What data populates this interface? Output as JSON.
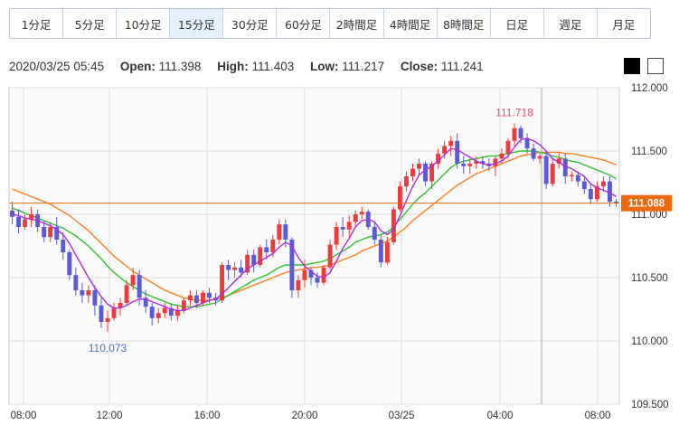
{
  "timeframes": [
    {
      "label": "1分足",
      "active": false
    },
    {
      "label": "5分足",
      "active": false
    },
    {
      "label": "10分足",
      "active": false
    },
    {
      "label": "15分足",
      "active": true
    },
    {
      "label": "30分足",
      "active": false
    },
    {
      "label": "60分足",
      "active": false
    },
    {
      "label": "2時間足",
      "active": false
    },
    {
      "label": "4時間足",
      "active": false
    },
    {
      "label": "8時間足",
      "active": false
    },
    {
      "label": "日足",
      "active": false
    },
    {
      "label": "週足",
      "active": false
    },
    {
      "label": "月足",
      "active": false
    }
  ],
  "ohlc": {
    "datetime": "2020/03/25 05:45",
    "open_label": "Open:",
    "open": "111.398",
    "high_label": "High:",
    "high": "111.403",
    "low_label": "Low:",
    "low": "111.217",
    "close_label": "Close:",
    "close": "111.241"
  },
  "theme_buttons": [
    "dark-theme",
    "light-theme"
  ],
  "colors": {
    "up": "#ee3a3a",
    "down": "#5a5ad6",
    "ma_short": "#b02be0",
    "ma_mid": "#2ec22e",
    "ma_long": "#ff7f1e",
    "current_price": "#ee6a10",
    "high_label": "#e0506a",
    "low_label": "#4a70c8",
    "grid": "#dcdcdc",
    "plot_bg": "#fafafa"
  },
  "chart_data": {
    "type": "candlestick",
    "interval": "15分足",
    "ylim": [
      109.5,
      112.0
    ],
    "y_ticks": [
      "112.000",
      "111.500",
      "111.000",
      "110.500",
      "110.000",
      "109.500"
    ],
    "x_ticks": [
      "08:00",
      "12:00",
      "16:00",
      "20:00",
      "03/25",
      "04:00",
      "08:00"
    ],
    "current_price": "111.088",
    "high_marker": {
      "label": "111.718",
      "value": 111.718
    },
    "low_marker": {
      "label": "110.073",
      "value": 110.073
    },
    "candles": [
      [
        111.03,
        111.1,
        110.92,
        110.98
      ],
      [
        110.98,
        111.04,
        110.85,
        110.9
      ],
      [
        110.9,
        111.0,
        110.88,
        110.96
      ],
      [
        110.96,
        111.06,
        110.9,
        111.0
      ],
      [
        111.0,
        111.04,
        110.86,
        110.9
      ],
      [
        110.9,
        110.95,
        110.78,
        110.82
      ],
      [
        110.82,
        110.94,
        110.78,
        110.9
      ],
      [
        110.9,
        110.98,
        110.76,
        110.8
      ],
      [
        110.8,
        110.86,
        110.64,
        110.7
      ],
      [
        110.7,
        110.72,
        110.48,
        110.52
      ],
      [
        110.52,
        110.58,
        110.36,
        110.4
      ],
      [
        110.4,
        110.46,
        110.3,
        110.36
      ],
      [
        110.36,
        110.44,
        110.3,
        110.4
      ],
      [
        110.4,
        110.44,
        110.2,
        110.28
      ],
      [
        110.28,
        110.34,
        110.1,
        110.15
      ],
      [
        110.15,
        110.24,
        110.073,
        110.18
      ],
      [
        110.18,
        110.3,
        110.16,
        110.26
      ],
      [
        110.26,
        110.34,
        110.2,
        110.3
      ],
      [
        110.3,
        110.48,
        110.28,
        110.44
      ],
      [
        110.44,
        110.58,
        110.4,
        110.52
      ],
      [
        110.52,
        110.56,
        110.28,
        110.34
      ],
      [
        110.34,
        110.4,
        110.22,
        110.27
      ],
      [
        110.27,
        110.3,
        110.12,
        110.18
      ],
      [
        110.18,
        110.26,
        110.14,
        110.22
      ],
      [
        110.22,
        110.3,
        110.18,
        110.26
      ],
      [
        110.26,
        110.3,
        110.16,
        110.2
      ],
      [
        110.2,
        110.28,
        110.16,
        110.24
      ],
      [
        110.24,
        110.34,
        110.22,
        110.32
      ],
      [
        110.32,
        110.4,
        110.28,
        110.36
      ],
      [
        110.36,
        110.4,
        110.26,
        110.3
      ],
      [
        110.3,
        110.4,
        110.28,
        110.38
      ],
      [
        110.38,
        110.42,
        110.3,
        110.34
      ],
      [
        110.34,
        110.38,
        110.28,
        110.32
      ],
      [
        110.32,
        110.62,
        110.3,
        110.6
      ],
      [
        110.6,
        110.64,
        110.48,
        110.56
      ],
      [
        110.56,
        110.62,
        110.5,
        110.58
      ],
      [
        110.58,
        110.64,
        110.5,
        110.54
      ],
      [
        110.54,
        110.72,
        110.52,
        110.68
      ],
      [
        110.68,
        110.72,
        110.54,
        110.6
      ],
      [
        110.6,
        110.76,
        110.58,
        110.74
      ],
      [
        110.74,
        110.8,
        110.64,
        110.7
      ],
      [
        110.7,
        110.84,
        110.66,
        110.8
      ],
      [
        110.8,
        110.96,
        110.76,
        110.92
      ],
      [
        110.92,
        110.96,
        110.74,
        110.8
      ],
      [
        110.8,
        110.82,
        110.34,
        110.4
      ],
      [
        110.4,
        110.52,
        110.34,
        110.48
      ],
      [
        110.48,
        110.64,
        110.42,
        110.56
      ],
      [
        110.56,
        110.58,
        110.44,
        110.5
      ],
      [
        110.5,
        110.54,
        110.42,
        110.46
      ],
      [
        110.46,
        110.6,
        110.44,
        110.58
      ],
      [
        110.58,
        110.8,
        110.56,
        110.76
      ],
      [
        110.76,
        110.94,
        110.72,
        110.9
      ],
      [
        110.9,
        110.98,
        110.82,
        110.88
      ],
      [
        110.88,
        110.99,
        110.82,
        110.94
      ],
      [
        110.94,
        111.03,
        110.9,
        111.0
      ],
      [
        111.0,
        111.06,
        110.96,
        111.02
      ],
      [
        111.02,
        111.04,
        110.88,
        110.9
      ],
      [
        110.9,
        110.94,
        110.76,
        110.8
      ],
      [
        110.8,
        110.84,
        110.58,
        110.62
      ],
      [
        110.62,
        110.82,
        110.6,
        110.78
      ],
      [
        110.78,
        111.06,
        110.76,
        111.04
      ],
      [
        111.04,
        111.26,
        111.02,
        111.22
      ],
      [
        111.22,
        111.34,
        111.18,
        111.3
      ],
      [
        111.3,
        111.4,
        111.26,
        111.36
      ],
      [
        111.36,
        111.44,
        111.3,
        111.4
      ],
      [
        111.4,
        111.42,
        111.22,
        111.26
      ],
      [
        111.26,
        111.42,
        111.2,
        111.4
      ],
      [
        111.4,
        111.52,
        111.36,
        111.48
      ],
      [
        111.48,
        111.58,
        111.44,
        111.54
      ],
      [
        111.54,
        111.62,
        111.46,
        111.58
      ],
      [
        111.58,
        111.64,
        111.36,
        111.4
      ],
      [
        111.4,
        111.46,
        111.32,
        111.38
      ],
      [
        111.38,
        111.44,
        111.32,
        111.4
      ],
      [
        111.4,
        111.46,
        111.36,
        111.42
      ],
      [
        111.42,
        111.46,
        111.36,
        111.4
      ],
      [
        111.4,
        111.44,
        111.34,
        111.38
      ],
      [
        111.38,
        111.46,
        111.3,
        111.44
      ],
      [
        111.44,
        111.52,
        111.4,
        111.48
      ],
      [
        111.48,
        111.6,
        111.44,
        111.58
      ],
      [
        111.58,
        111.718,
        111.54,
        111.68
      ],
      [
        111.68,
        111.7,
        111.56,
        111.6
      ],
      [
        111.6,
        111.64,
        111.48,
        111.52
      ],
      [
        111.52,
        111.56,
        111.42,
        111.44
      ],
      [
        111.44,
        111.48,
        111.4,
        111.46
      ],
      [
        111.46,
        111.5,
        111.2,
        111.24
      ],
      [
        111.24,
        111.44,
        111.22,
        111.4
      ],
      [
        111.4,
        111.48,
        111.36,
        111.44
      ],
      [
        111.44,
        111.48,
        111.24,
        111.3
      ],
      [
        111.3,
        111.34,
        111.26,
        111.31
      ],
      [
        111.31,
        111.34,
        111.22,
        111.26
      ],
      [
        111.26,
        111.3,
        111.16,
        111.2
      ],
      [
        111.2,
        111.24,
        111.08,
        111.12
      ],
      [
        111.12,
        111.26,
        111.1,
        111.22
      ],
      [
        111.22,
        111.3,
        111.18,
        111.26
      ],
      [
        111.26,
        111.3,
        111.06,
        111.1
      ],
      [
        111.1,
        111.12,
        111.06,
        111.088
      ]
    ],
    "ma_short": [
      111.0,
      110.99,
      110.97,
      110.96,
      110.95,
      110.93,
      110.91,
      110.88,
      110.84,
      110.77,
      110.68,
      110.59,
      110.5,
      110.42,
      110.35,
      110.29,
      110.26,
      110.26,
      110.28,
      110.31,
      110.33,
      110.33,
      110.31,
      110.29,
      110.27,
      110.25,
      110.24,
      110.24,
      110.26,
      110.28,
      110.3,
      110.32,
      110.33,
      110.37,
      110.42,
      110.47,
      110.52,
      110.57,
      110.6,
      110.63,
      110.66,
      110.69,
      110.74,
      110.78,
      110.75,
      110.66,
      110.59,
      110.55,
      110.51,
      110.5,
      110.54,
      110.63,
      110.73,
      110.81,
      110.9,
      110.95,
      110.96,
      110.94,
      110.87,
      110.84,
      110.88,
      110.99,
      111.11,
      111.22,
      111.31,
      111.35,
      111.38,
      111.42,
      111.47,
      111.52,
      111.51,
      111.48,
      111.45,
      111.42,
      111.4,
      111.39,
      111.4,
      111.42,
      111.46,
      111.53,
      111.59,
      111.6,
      111.58,
      111.55,
      111.5,
      111.44,
      111.41,
      111.38,
      111.36,
      111.33,
      111.3,
      111.24,
      111.21,
      111.19,
      111.17,
      111.14
    ],
    "ma_mid": [
      111.05,
      111.03,
      111.01,
      110.99,
      110.97,
      110.95,
      110.93,
      110.91,
      110.89,
      110.86,
      110.83,
      110.79,
      110.75,
      110.7,
      110.65,
      110.59,
      110.54,
      110.5,
      110.46,
      110.43,
      110.4,
      110.37,
      110.35,
      110.33,
      110.31,
      110.29,
      110.28,
      110.27,
      110.27,
      110.27,
      110.28,
      110.29,
      110.3,
      110.33,
      110.36,
      110.39,
      110.42,
      110.45,
      110.48,
      110.5,
      110.52,
      110.55,
      110.58,
      110.6,
      110.6,
      110.6,
      110.6,
      110.61,
      110.62,
      110.63,
      110.65,
      110.68,
      110.71,
      110.74,
      110.78,
      110.8,
      110.82,
      110.83,
      110.84,
      110.86,
      110.9,
      110.96,
      111.02,
      111.08,
      111.13,
      111.17,
      111.22,
      111.27,
      111.32,
      111.37,
      111.4,
      111.42,
      111.43,
      111.44,
      111.45,
      111.46,
      111.46,
      111.47,
      111.48,
      111.49,
      111.5,
      111.5,
      111.5,
      111.49,
      111.48,
      111.46,
      111.45,
      111.43,
      111.42,
      111.41,
      111.39,
      111.37,
      111.35,
      111.33,
      111.31,
      111.28
    ],
    "ma_long": [
      111.2,
      111.18,
      111.16,
      111.14,
      111.12,
      111.1,
      111.08,
      111.05,
      111.02,
      110.99,
      110.95,
      110.91,
      110.87,
      110.82,
      110.77,
      110.72,
      110.67,
      110.63,
      110.59,
      110.55,
      110.52,
      110.49,
      110.46,
      110.43,
      110.4,
      110.38,
      110.36,
      110.34,
      110.33,
      110.32,
      110.32,
      110.32,
      110.33,
      110.34,
      110.36,
      110.38,
      110.4,
      110.42,
      110.44,
      110.46,
      110.48,
      110.5,
      110.52,
      110.54,
      110.55,
      110.56,
      110.57,
      110.58,
      110.58,
      110.59,
      110.6,
      110.62,
      110.64,
      110.66,
      110.68,
      110.71,
      110.73,
      110.75,
      110.77,
      110.79,
      110.82,
      110.86,
      110.9,
      110.95,
      110.99,
      111.03,
      111.07,
      111.11,
      111.15,
      111.19,
      111.23,
      111.26,
      111.29,
      111.32,
      111.34,
      111.36,
      111.38,
      111.4,
      111.42,
      111.44,
      111.46,
      111.47,
      111.48,
      111.49,
      111.49,
      111.49,
      111.49,
      111.48,
      111.48,
      111.47,
      111.46,
      111.45,
      111.44,
      111.43,
      111.41,
      111.39
    ]
  }
}
